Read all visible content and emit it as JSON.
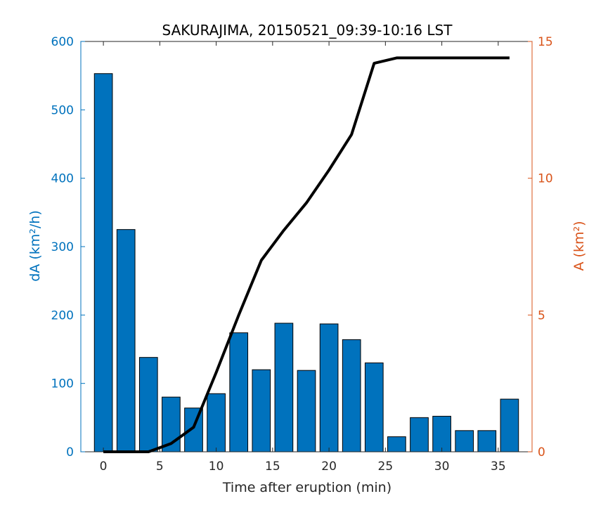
{
  "chart_data": {
    "type": "bar",
    "title": "SAKURAJIMA, 20150521_09:39-10:16 LST",
    "xlabel": "Time after eruption (min)",
    "ylabel_left": "dA (km²/h)",
    "ylabel_right": "A (km²)",
    "xlim": [
      -2,
      38
    ],
    "ylim_left": [
      0,
      600
    ],
    "ylim_right": [
      0,
      15
    ],
    "x_ticks": [
      0,
      5,
      10,
      15,
      20,
      25,
      30,
      35
    ],
    "y_ticks_left": [
      0,
      100,
      200,
      300,
      400,
      500,
      600
    ],
    "y_ticks_right": [
      0,
      5,
      10,
      15
    ],
    "grid": false,
    "colors": {
      "bars": "#0072BD",
      "line": "#000000",
      "left_axis": "#0072BD",
      "right_axis": "#D95319"
    },
    "series": [
      {
        "type": "bar",
        "axis": "left",
        "x": [
          0,
          2,
          4,
          6,
          8,
          10,
          12,
          14,
          16,
          18,
          20,
          22,
          24,
          26,
          28,
          30,
          32,
          34,
          36
        ],
        "values": [
          553,
          325,
          138,
          80,
          64,
          85,
          174,
          120,
          188,
          119,
          187,
          164,
          130,
          22,
          50,
          52,
          31,
          31,
          77
        ]
      },
      {
        "type": "line",
        "axis": "right",
        "x": [
          0,
          2,
          4,
          6,
          8,
          10,
          12,
          14,
          16,
          18,
          20,
          22,
          24,
          26,
          28,
          30,
          32,
          34,
          36
        ],
        "values": [
          0,
          0,
          0,
          0.3,
          0.9,
          2.9,
          5.0,
          7.0,
          8.1,
          9.1,
          10.3,
          11.6,
          14.2,
          14.4,
          14.4,
          14.4,
          14.4,
          14.4,
          14.4
        ]
      }
    ]
  }
}
